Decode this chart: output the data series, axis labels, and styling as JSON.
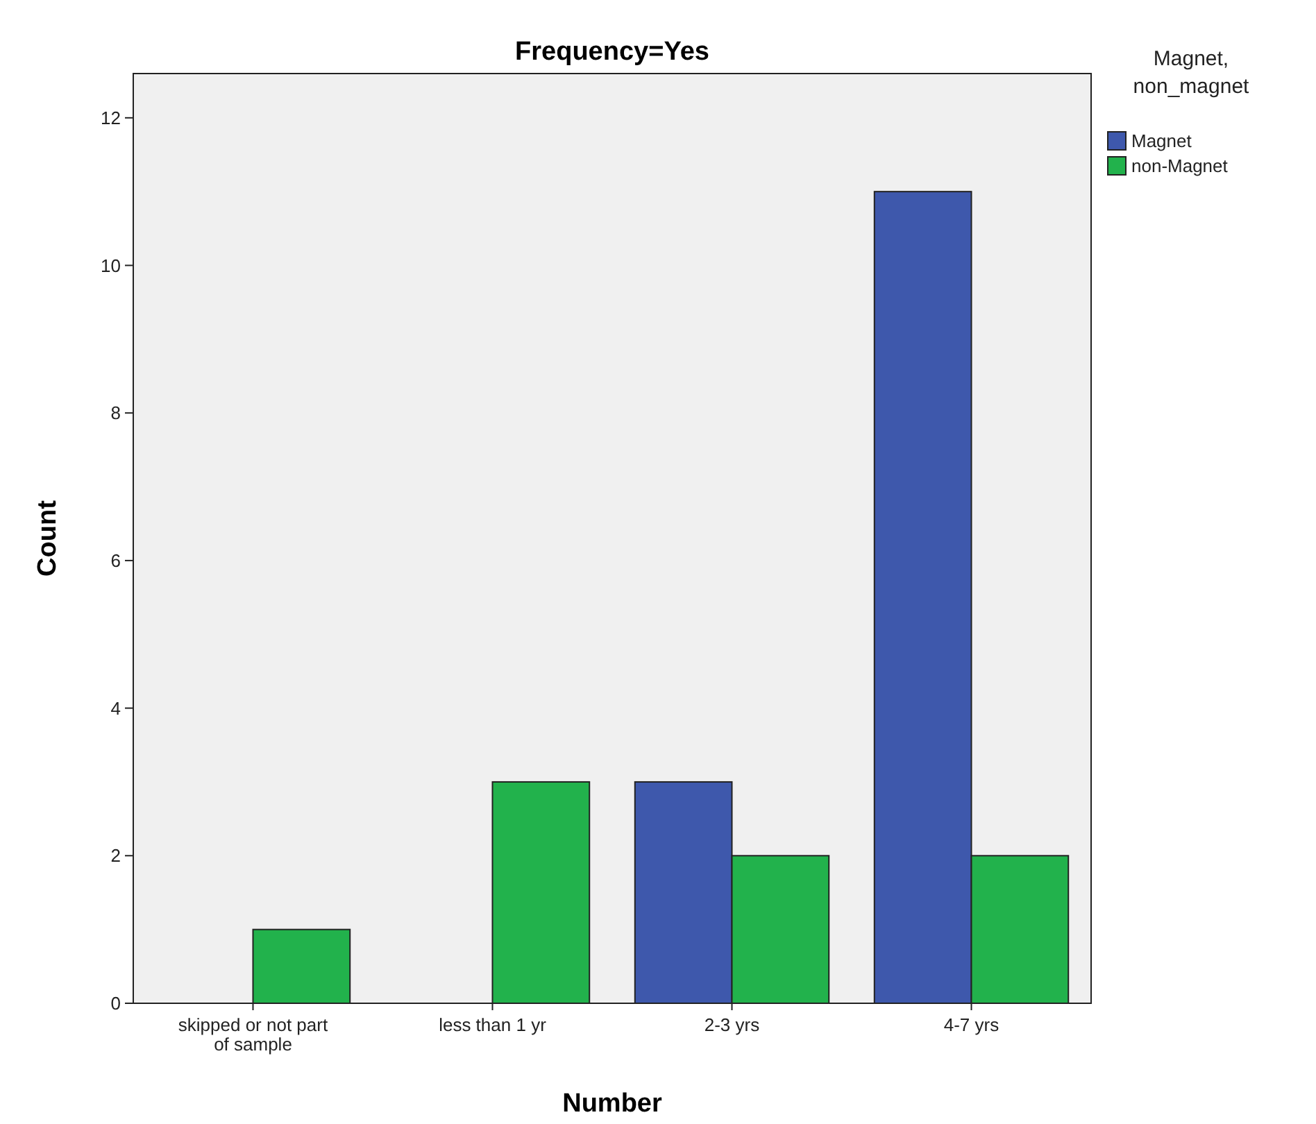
{
  "chart_data": {
    "type": "bar",
    "title": "Frequency=Yes",
    "xlabel": "Number",
    "ylabel": "Count",
    "legend_title": "Magnet, non_magnet",
    "legend": "right",
    "categories": [
      "skipped or not part of sample",
      "less than 1 yr",
      "2-3 yrs",
      "4-7 yrs"
    ],
    "series": [
      {
        "name": "Magnet",
        "color": "#3e58ac",
        "values": [
          0,
          0,
          3,
          11
        ]
      },
      {
        "name": "non-Magnet",
        "color": "#22b24c",
        "values": [
          1,
          3,
          2,
          2
        ]
      }
    ],
    "ylim": [
      0,
      12.6
    ],
    "yticks": [
      0,
      2,
      4,
      6,
      8,
      10,
      12
    ],
    "grid": false
  }
}
